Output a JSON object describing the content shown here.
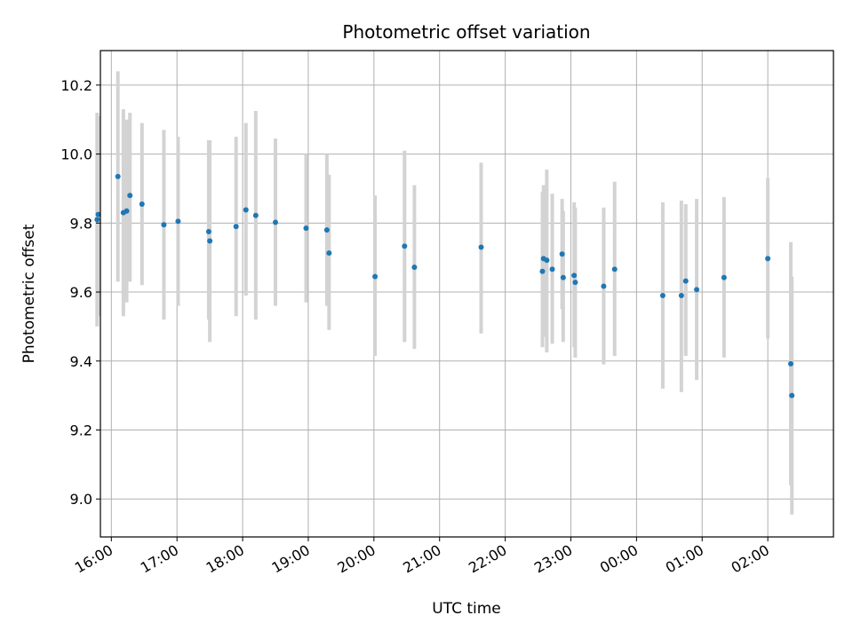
{
  "chart_data": {
    "type": "scatter",
    "title": "Photometric offset variation",
    "xlabel": "UTC time",
    "ylabel": "Photometric offset",
    "grid": true,
    "x_ticks": [
      "16:00",
      "17:00",
      "18:00",
      "19:00",
      "20:00",
      "21:00",
      "22:00",
      "23:00",
      "00:00",
      "01:00",
      "02:00"
    ],
    "y_ticks": [
      "9.0",
      "9.2",
      "9.4",
      "9.6",
      "9.8",
      "10.0",
      "10.2"
    ],
    "xlim": [
      "15:50",
      "03:00"
    ],
    "ylim": [
      8.89,
      10.3
    ],
    "colors": {
      "point": "#1f77b4",
      "errorbar": "#d3d3d3",
      "grid": "#b0b0b0"
    },
    "series": [
      {
        "points": [
          {
            "x": "15:47",
            "y": 9.81,
            "low": 9.5,
            "high": 10.12
          },
          {
            "x": "15:48",
            "y": 9.825,
            "low": 9.53,
            "high": 10.11
          },
          {
            "x": "16:06",
            "y": 9.935,
            "low": 9.63,
            "high": 10.24
          },
          {
            "x": "16:11",
            "y": 9.83,
            "low": 9.53,
            "high": 10.13
          },
          {
            "x": "16:14",
            "y": 9.835,
            "low": 9.57,
            "high": 10.1
          },
          {
            "x": "16:17",
            "y": 9.88,
            "low": 9.63,
            "high": 10.12
          },
          {
            "x": "16:28",
            "y": 9.855,
            "low": 9.62,
            "high": 10.09
          },
          {
            "x": "16:48",
            "y": 9.795,
            "low": 9.52,
            "high": 10.07
          },
          {
            "x": "17:01",
            "y": 9.805,
            "low": 9.56,
            "high": 10.05
          },
          {
            "x": "17:29",
            "y": 9.775,
            "low": 9.52,
            "high": 10.04
          },
          {
            "x": "17:30",
            "y": 9.748,
            "low": 9.455,
            "high": 10.04
          },
          {
            "x": "17:54",
            "y": 9.79,
            "low": 9.53,
            "high": 10.05
          },
          {
            "x": "18:03",
            "y": 9.838,
            "low": 9.59,
            "high": 10.09
          },
          {
            "x": "18:12",
            "y": 9.822,
            "low": 9.52,
            "high": 10.125
          },
          {
            "x": "18:30",
            "y": 9.802,
            "low": 9.56,
            "high": 10.045
          },
          {
            "x": "18:58",
            "y": 9.785,
            "low": 9.57,
            "high": 10.0
          },
          {
            "x": "19:17",
            "y": 9.78,
            "low": 9.56,
            "high": 10.0
          },
          {
            "x": "19:19",
            "y": 9.713,
            "low": 9.49,
            "high": 9.94
          },
          {
            "x": "20:01",
            "y": 9.645,
            "low": 9.415,
            "high": 9.88
          },
          {
            "x": "20:28",
            "y": 9.733,
            "low": 9.455,
            "high": 10.01
          },
          {
            "x": "20:37",
            "y": 9.672,
            "low": 9.435,
            "high": 9.91
          },
          {
            "x": "21:38",
            "y": 9.73,
            "low": 9.48,
            "high": 9.975
          },
          {
            "x": "22:34",
            "y": 9.66,
            "low": 9.44,
            "high": 9.89
          },
          {
            "x": "22:35",
            "y": 9.697,
            "low": 9.47,
            "high": 9.91
          },
          {
            "x": "22:38",
            "y": 9.692,
            "low": 9.425,
            "high": 9.955
          },
          {
            "x": "22:43",
            "y": 9.666,
            "low": 9.45,
            "high": 9.885
          },
          {
            "x": "22:52",
            "y": 9.71,
            "low": 9.55,
            "high": 9.87
          },
          {
            "x": "22:53",
            "y": 9.642,
            "low": 9.455,
            "high": 9.835
          },
          {
            "x": "23:03",
            "y": 9.648,
            "low": 9.44,
            "high": 9.86
          },
          {
            "x": "23:04",
            "y": 9.628,
            "low": 9.41,
            "high": 9.845
          },
          {
            "x": "23:30",
            "y": 9.617,
            "low": 9.39,
            "high": 9.845
          },
          {
            "x": "23:40",
            "y": 9.666,
            "low": 9.415,
            "high": 9.92
          },
          {
            "x": "00:24",
            "y": 9.59,
            "low": 9.32,
            "high": 9.86
          },
          {
            "x": "00:41",
            "y": 9.59,
            "low": 9.31,
            "high": 9.865
          },
          {
            "x": "00:45",
            "y": 9.632,
            "low": 9.415,
            "high": 9.855
          },
          {
            "x": "00:55",
            "y": 9.607,
            "low": 9.345,
            "high": 9.87
          },
          {
            "x": "01:20",
            "y": 9.642,
            "low": 9.41,
            "high": 9.875
          },
          {
            "x": "02:00",
            "y": 9.697,
            "low": 9.465,
            "high": 9.93
          },
          {
            "x": "02:21",
            "y": 9.392,
            "low": 9.04,
            "high": 9.745
          },
          {
            "x": "02:22",
            "y": 9.3,
            "low": 8.955,
            "high": 9.645
          }
        ]
      }
    ]
  }
}
